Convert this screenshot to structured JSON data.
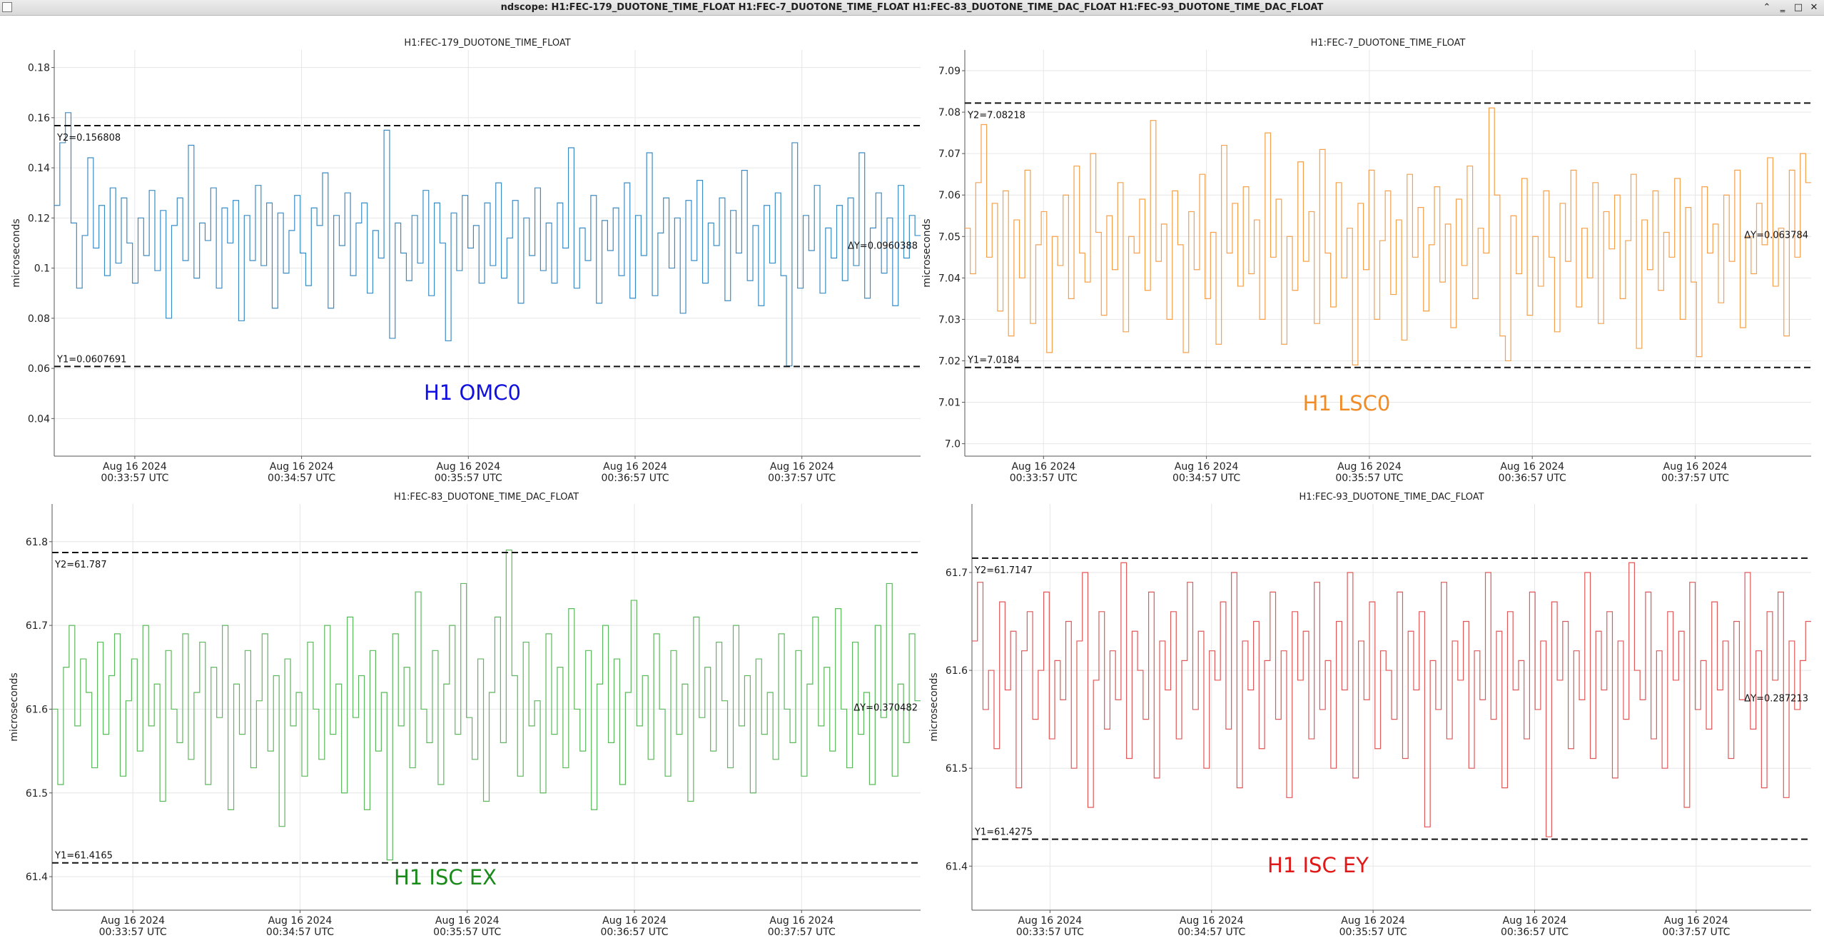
{
  "window": {
    "title": "ndscope: H1:FEC-179_DUOTONE_TIME_FLOAT H1:FEC-7_DUOTONE_TIME_FLOAT H1:FEC-83_DUOTONE_TIME_DAC_FLOAT H1:FEC-93_DUOTONE_TIME_DAC_FLOAT",
    "buttons": [
      {
        "name": "restore-up-button",
        "glyph": "⌃"
      },
      {
        "name": "minimize-button",
        "glyph": "‗"
      },
      {
        "name": "maximize-button",
        "glyph": "□"
      },
      {
        "name": "close-button",
        "glyph": "✕"
      }
    ]
  },
  "chart_data": [
    {
      "type": "line",
      "step": true,
      "title": "H1:FEC-179_DUOTONE_TIME_FLOAT",
      "ylabel": "microseconds",
      "xlabel": "",
      "ylim": [
        0.025,
        0.187
      ],
      "yticks": [
        0.04,
        0.06,
        0.08,
        0.1,
        0.12,
        0.14,
        0.16,
        0.18
      ],
      "ytick_labels": [
        "0.04",
        "0.06",
        "0.08",
        "0.1",
        "0.12",
        "0.14",
        "0.16",
        "0.18"
      ],
      "xticks": [
        {
          "line1": "Aug 16 2024",
          "line2": "00:33:57 UTC"
        },
        {
          "line1": "Aug 16 2024",
          "line2": "00:34:57 UTC"
        },
        {
          "line1": "Aug 16 2024",
          "line2": "00:35:57 UTC"
        },
        {
          "line1": "Aug 16 2024",
          "line2": "00:36:57 UTC"
        },
        {
          "line1": "Aug 16 2024",
          "line2": "00:37:57 UTC"
        }
      ],
      "grid": true,
      "color": "#3b8cc4",
      "cursor_y1": 0.0607691,
      "cursor_y2": 0.156808,
      "y1_label": "Y1=0.0607691",
      "y2_label": "Y2=0.156808",
      "dy_label": "ΔY=0.0960388",
      "annotation": "H1 OMC0",
      "annotation_color": "#1010e0",
      "series": [
        {
          "values": [
            0.125,
            0.15,
            0.162,
            0.118,
            0.092,
            0.113,
            0.144,
            0.108,
            0.125,
            0.097,
            0.132,
            0.102,
            0.128,
            0.11,
            0.094,
            0.12,
            0.105,
            0.131,
            0.099,
            0.123,
            0.08,
            0.117,
            0.128,
            0.103,
            0.149,
            0.096,
            0.118,
            0.111,
            0.132,
            0.092,
            0.124,
            0.11,
            0.127,
            0.079,
            0.121,
            0.103,
            0.133,
            0.101,
            0.126,
            0.084,
            0.122,
            0.098,
            0.115,
            0.129,
            0.106,
            0.093,
            0.124,
            0.117,
            0.138,
            0.084,
            0.121,
            0.109,
            0.13,
            0.097,
            0.118,
            0.126,
            0.09,
            0.115,
            0.104,
            0.155,
            0.072,
            0.118,
            0.106,
            0.095,
            0.121,
            0.102,
            0.131,
            0.089,
            0.126,
            0.11,
            0.071,
            0.122,
            0.099,
            0.129,
            0.108,
            0.117,
            0.094,
            0.126,
            0.101,
            0.134,
            0.096,
            0.112,
            0.127,
            0.086,
            0.12,
            0.105,
            0.132,
            0.099,
            0.118,
            0.094,
            0.126,
            0.108,
            0.148,
            0.092,
            0.116,
            0.103,
            0.129,
            0.086,
            0.119,
            0.107,
            0.124,
            0.097,
            0.134,
            0.088,
            0.121,
            0.105,
            0.146,
            0.089,
            0.114,
            0.128,
            0.1,
            0.12,
            0.082,
            0.127,
            0.103,
            0.135,
            0.094,
            0.118,
            0.109,
            0.128,
            0.087,
            0.123,
            0.106,
            0.139,
            0.095,
            0.117,
            0.085,
            0.125,
            0.102,
            0.13,
            0.097,
            0.061,
            0.15,
            0.092,
            0.121,
            0.107,
            0.133,
            0.09,
            0.116,
            0.104,
            0.125,
            0.095,
            0.128,
            0.101,
            0.146,
            0.088,
            0.116,
            0.13,
            0.098,
            0.12,
            0.085,
            0.133,
            0.104,
            0.121,
            0.113
          ]
        }
      ]
    },
    {
      "type": "line",
      "step": true,
      "title": "H1:FEC-7_DUOTONE_TIME_FLOAT",
      "ylabel": "microseconds",
      "xlabel": "",
      "ylim": [
        6.997,
        7.095
      ],
      "yticks": [
        7.0,
        7.01,
        7.02,
        7.03,
        7.04,
        7.05,
        7.06,
        7.07,
        7.08,
        7.09
      ],
      "ytick_labels": [
        "7.0",
        "7.01",
        "7.02",
        "7.03",
        "7.04",
        "7.05",
        "7.06",
        "7.07",
        "7.08",
        "7.09"
      ],
      "xticks": [
        {
          "line1": "Aug 16 2024",
          "line2": "00:33:57 UTC"
        },
        {
          "line1": "Aug 16 2024",
          "line2": "00:34:57 UTC"
        },
        {
          "line1": "Aug 16 2024",
          "line2": "00:35:57 UTC"
        },
        {
          "line1": "Aug 16 2024",
          "line2": "00:36:57 UTC"
        },
        {
          "line1": "Aug 16 2024",
          "line2": "00:37:57 UTC"
        }
      ],
      "grid": true,
      "color": "#f5a04a",
      "cursor_y1": 7.0184,
      "cursor_y2": 7.08218,
      "y1_label": "Y1=7.0184",
      "y2_label": "Y2=7.08218",
      "dy_label": "ΔY=0.063784",
      "annotation": "H1 LSC0",
      "annotation_color": "#f08c28",
      "series": [
        {
          "values": [
            7.052,
            7.041,
            7.063,
            7.077,
            7.045,
            7.058,
            7.032,
            7.061,
            7.026,
            7.054,
            7.04,
            7.066,
            7.029,
            7.048,
            7.056,
            7.022,
            7.05,
            7.043,
            7.06,
            7.035,
            7.067,
            7.046,
            7.039,
            7.07,
            7.051,
            7.031,
            7.055,
            7.042,
            7.063,
            7.027,
            7.05,
            7.046,
            7.059,
            7.037,
            7.078,
            7.044,
            7.053,
            7.03,
            7.061,
            7.048,
            7.022,
            7.056,
            7.042,
            7.065,
            7.035,
            7.051,
            7.024,
            7.072,
            7.046,
            7.058,
            7.038,
            7.062,
            7.041,
            7.054,
            7.03,
            7.075,
            7.045,
            7.059,
            7.024,
            7.05,
            7.037,
            7.068,
            7.044,
            7.056,
            7.029,
            7.071,
            7.046,
            7.033,
            7.063,
            7.04,
            7.052,
            7.019,
            7.058,
            7.042,
            7.066,
            7.03,
            7.049,
            7.061,
            7.036,
            7.054,
            7.025,
            7.065,
            7.045,
            7.057,
            7.032,
            7.048,
            7.062,
            7.039,
            7.053,
            7.028,
            7.059,
            7.043,
            7.067,
            7.035,
            7.052,
            7.046,
            7.081,
            7.06,
            7.026,
            7.02,
            7.055,
            7.041,
            7.064,
            7.031,
            7.05,
            7.038,
            7.061,
            7.045,
            7.027,
            7.058,
            7.044,
            7.066,
            7.033,
            7.052,
            7.04,
            7.063,
            7.029,
            7.056,
            7.047,
            7.06,
            7.035,
            7.049,
            7.065,
            7.023,
            7.054,
            7.042,
            7.061,
            7.037,
            7.051,
            7.045,
            7.064,
            7.03,
            7.057,
            7.039,
            7.021,
            7.062,
            7.046,
            7.053,
            7.034,
            7.06,
            7.044,
            7.066,
            7.028,
            7.05,
            7.041,
            7.058,
            7.048,
            7.069,
            7.038,
            7.052,
            7.026,
            7.066,
            7.045,
            7.07,
            7.063
          ]
        }
      ]
    },
    {
      "type": "line",
      "step": true,
      "title": "H1:FEC-83_DUOTONE_TIME_DAC_FLOAT",
      "ylabel": "microseconds",
      "xlabel": "",
      "ylim": [
        61.36,
        61.845
      ],
      "yticks": [
        61.4,
        61.5,
        61.6,
        61.7,
        61.8
      ],
      "ytick_labels": [
        "61.4",
        "61.5",
        "61.6",
        "61.7",
        "61.8"
      ],
      "xticks": [
        {
          "line1": "Aug 16 2024",
          "line2": "00:33:57 UTC"
        },
        {
          "line1": "Aug 16 2024",
          "line2": "00:34:57 UTC"
        },
        {
          "line1": "Aug 16 2024",
          "line2": "00:35:57 UTC"
        },
        {
          "line1": "Aug 16 2024",
          "line2": "00:36:57 UTC"
        },
        {
          "line1": "Aug 16 2024",
          "line2": "00:37:57 UTC"
        }
      ],
      "grid": true,
      "color": "#5cb85c",
      "cursor_y1": 61.4165,
      "cursor_y2": 61.787,
      "y1_label": "Y1=61.4165",
      "y2_label": "Y2=61.787",
      "dy_label": "ΔY=0.370482",
      "annotation": "H1 ISC EX",
      "annotation_color": "#1a8a1a",
      "series": [
        {
          "values": [
            61.6,
            61.51,
            61.65,
            61.7,
            61.58,
            61.66,
            61.62,
            61.53,
            61.68,
            61.57,
            61.64,
            61.69,
            61.52,
            61.61,
            61.66,
            61.55,
            61.7,
            61.58,
            61.63,
            61.49,
            61.67,
            61.6,
            61.56,
            61.69,
            61.54,
            61.62,
            61.68,
            61.51,
            61.65,
            61.59,
            61.7,
            61.48,
            61.63,
            61.57,
            61.67,
            61.53,
            61.61,
            61.69,
            61.55,
            61.64,
            61.46,
            61.66,
            61.58,
            61.62,
            61.52,
            61.68,
            61.6,
            61.54,
            61.7,
            61.57,
            61.63,
            61.5,
            61.71,
            61.59,
            61.64,
            61.48,
            61.67,
            61.55,
            61.62,
            61.42,
            61.69,
            61.58,
            61.65,
            61.53,
            61.74,
            61.6,
            61.56,
            61.67,
            61.51,
            61.63,
            61.7,
            61.57,
            61.75,
            61.59,
            61.54,
            61.66,
            61.49,
            61.62,
            61.71,
            61.56,
            61.79,
            61.64,
            61.52,
            61.68,
            61.58,
            61.61,
            61.5,
            61.69,
            61.57,
            61.65,
            61.53,
            61.72,
            61.6,
            61.55,
            61.67,
            61.48,
            61.63,
            61.7,
            61.56,
            61.66,
            61.51,
            61.62,
            61.73,
            61.58,
            61.64,
            61.54,
            61.69,
            61.6,
            61.52,
            61.67,
            61.57,
            61.63,
            61.49,
            61.71,
            61.59,
            61.65,
            61.55,
            61.68,
            61.61,
            61.53,
            61.7,
            61.58,
            61.64,
            61.5,
            61.66,
            61.57,
            61.62,
            61.54,
            61.69,
            61.6,
            61.56,
            61.67,
            61.52,
            61.63,
            61.71,
            61.58,
            61.65,
            61.55,
            61.72,
            61.6,
            61.53,
            61.68,
            61.57,
            61.62,
            61.51,
            61.7,
            61.59,
            61.75,
            61.52,
            61.63,
            61.56,
            61.69,
            61.61
          ]
        }
      ]
    },
    {
      "type": "line",
      "step": true,
      "title": "H1:FEC-93_DUOTONE_TIME_DAC_FLOAT",
      "ylabel": "microseconds",
      "xlabel": "",
      "ylim": [
        61.355,
        61.77
      ],
      "yticks": [
        61.4,
        61.5,
        61.6,
        61.7
      ],
      "ytick_labels": [
        "61.4",
        "61.5",
        "61.6",
        "61.7"
      ],
      "xticks": [
        {
          "line1": "Aug 16 2024",
          "line2": "00:33:57 UTC"
        },
        {
          "line1": "Aug 16 2024",
          "line2": "00:34:57 UTC"
        },
        {
          "line1": "Aug 16 2024",
          "line2": "00:35:57 UTC"
        },
        {
          "line1": "Aug 16 2024",
          "line2": "00:36:57 UTC"
        },
        {
          "line1": "Aug 16 2024",
          "line2": "00:37:57 UTC"
        }
      ],
      "grid": true,
      "color": "#e05858",
      "cursor_y1": 61.4275,
      "cursor_y2": 61.7147,
      "y1_label": "Y1=61.4275",
      "y2_label": "Y2=61.7147",
      "dy_label": "ΔY=0.287213",
      "annotation": "H1 ISC EY",
      "annotation_color": "#e01818",
      "series": [
        {
          "values": [
            61.63,
            61.69,
            61.56,
            61.6,
            61.52,
            61.67,
            61.58,
            61.64,
            61.48,
            61.62,
            61.66,
            61.55,
            61.6,
            61.68,
            61.53,
            61.61,
            61.57,
            61.65,
            61.5,
            61.63,
            61.7,
            61.46,
            61.59,
            61.66,
            61.54,
            61.62,
            61.57,
            61.71,
            61.51,
            61.64,
            61.6,
            61.55,
            61.68,
            61.49,
            61.63,
            61.58,
            61.66,
            61.53,
            61.61,
            61.69,
            61.56,
            61.64,
            61.5,
            61.62,
            61.59,
            61.67,
            61.54,
            61.7,
            61.48,
            61.63,
            61.58,
            61.65,
            61.52,
            61.61,
            61.68,
            61.55,
            61.62,
            61.47,
            61.66,
            61.59,
            61.64,
            61.53,
            61.69,
            61.56,
            61.61,
            61.5,
            61.65,
            61.58,
            61.7,
            61.49,
            61.63,
            61.57,
            61.67,
            61.52,
            61.62,
            61.6,
            61.55,
            61.68,
            61.51,
            61.64,
            61.58,
            61.66,
            61.44,
            61.61,
            61.56,
            61.69,
            61.53,
            61.63,
            61.59,
            61.65,
            61.5,
            61.62,
            61.57,
            61.7,
            61.55,
            61.64,
            61.48,
            61.66,
            61.58,
            61.61,
            61.53,
            61.68,
            61.56,
            61.63,
            61.43,
            61.67,
            61.59,
            61.65,
            61.52,
            61.62,
            61.57,
            61.7,
            61.51,
            61.64,
            61.58,
            61.66,
            61.49,
            61.63,
            61.55,
            61.71,
            61.6,
            61.57,
            61.68,
            61.53,
            61.62,
            61.5,
            61.66,
            61.59,
            61.64,
            61.46,
            61.69,
            61.56,
            61.61,
            61.54,
            61.67,
            61.58,
            61.63,
            61.51,
            61.65,
            61.57,
            61.7,
            61.54,
            61.62,
            61.48,
            61.66,
            61.59,
            61.68,
            61.47,
            61.63,
            61.56,
            61.61,
            61.65
          ]
        }
      ]
    }
  ]
}
